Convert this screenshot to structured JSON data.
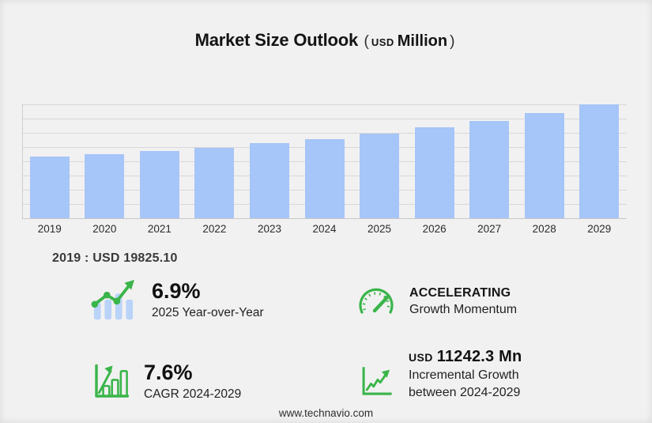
{
  "title": {
    "main": "Market Size Outlook",
    "paren_open": "(",
    "currency": "USD",
    "unit": "Million",
    "paren_close": ")"
  },
  "chart_data": {
    "type": "bar",
    "title": "Market Size Outlook (USD Million)",
    "categories": [
      "2019",
      "2020",
      "2021",
      "2022",
      "2023",
      "2024",
      "2025",
      "2026",
      "2027",
      "2028",
      "2029"
    ],
    "values": [
      19825.1,
      20620,
      21640,
      22660,
      24180,
      25417,
      27171,
      29275,
      31312,
      33857,
      36659
    ],
    "ylabel": "USD Million",
    "xlabel": "",
    "ylim": [
      0,
      36700
    ],
    "gridline_count": 9,
    "grid": "horizontal",
    "legend": "none",
    "bar_color": "#a6c5f8"
  },
  "base_year_note": "2019 : USD  19825.10",
  "stats": {
    "yoy": {
      "value": "6.9%",
      "label": "2025 Year-over-Year",
      "icon": "bar-chart-trend-icon"
    },
    "momentum": {
      "value": "ACCELERATING",
      "label": "Growth Momentum",
      "icon": "speedometer-icon"
    },
    "cagr": {
      "value": "7.6%",
      "label": "CAGR 2024-2029",
      "icon": "growth-chart-icon"
    },
    "incremental": {
      "currency": "USD",
      "value": "11242.3 Mn",
      "label_line1": "Incremental Growth",
      "label_line2": "between 2024-2029",
      "icon": "line-chart-arrow-icon"
    }
  },
  "footer": {
    "url": "www.technavio.com"
  },
  "colors": {
    "background": "#f2f1f1",
    "bar_blue": "#a6c5f8",
    "icon_bar_blue": "#b9d3f9",
    "accent_green": "#3ab54a",
    "gridline": "#d8d8d8",
    "text_dark": "#141414"
  }
}
